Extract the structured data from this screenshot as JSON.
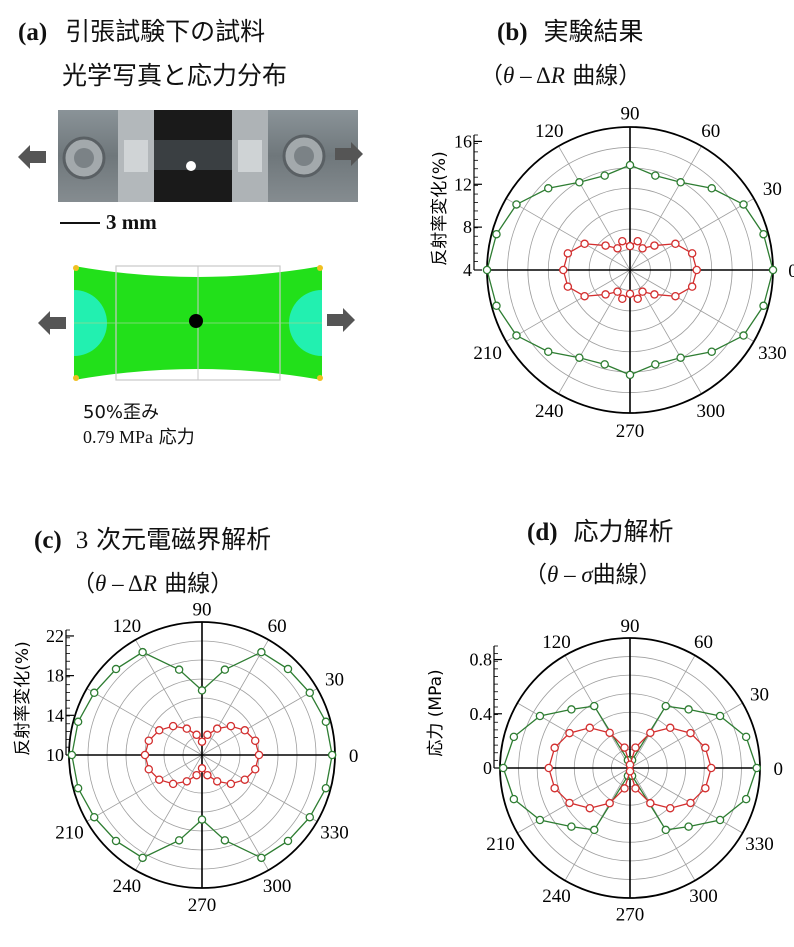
{
  "panel_a": {
    "label": "(a)",
    "title": "引張試験下の試料",
    "subtitle": "光学写真と応力分布",
    "scale_bar": "3 mm",
    "strain": "50%歪み",
    "stress_value": "0.79 MPa",
    "stress_word": "応力"
  },
  "panel_b": {
    "label": "(b)",
    "title": "実験結果",
    "subtitle_pre": "（",
    "subtitle_theta": "θ",
    "subtitle_mid": " – Δ",
    "subtitle_R": "R",
    "subtitle_post": " 曲線）"
  },
  "panel_c": {
    "label": "(c)",
    "title_num": "3",
    "title": " 次元電磁界解析",
    "subtitle_pre": "（",
    "subtitle_theta": "θ",
    "subtitle_mid": " – Δ",
    "subtitle_R": "R",
    "subtitle_post": " 曲線）"
  },
  "panel_d": {
    "label": "(d)",
    "title": "応力解析",
    "subtitle_pre": "（",
    "subtitle_theta": "θ",
    "subtitle_mid": " – ",
    "subtitle_sigma": "σ",
    "subtitle_post": "曲線）"
  },
  "colors": {
    "green": "#2e7d32",
    "red": "#d32f2f",
    "grid": "#9e9e9e",
    "fem_green": "#22e01a",
    "fem_cyan": "#22f0b0",
    "arrow": "#555555"
  },
  "chart_data": [
    {
      "id": "b",
      "type": "polar",
      "ylabel": "反射率変化(%)",
      "rlim": [
        4,
        16
      ],
      "r_ticks": [
        "4",
        "8",
        "12",
        "16"
      ],
      "angle_ticks": [
        "0",
        "30",
        "60",
        "90",
        "120",
        "210",
        "240",
        "270",
        "300",
        "330"
      ],
      "series": [
        {
          "angles": [
            0,
            15,
            30,
            45,
            60,
            75,
            90,
            105,
            120,
            135,
            150,
            165,
            180,
            195,
            210,
            225,
            240,
            255,
            270,
            285,
            300,
            315,
            330,
            345
          ],
          "values": [
            16,
            15.6,
            15,
            13.7,
            12.5,
            12.2,
            12.8,
            12.2,
            12.5,
            13.7,
            15,
            15.6,
            16,
            15.6,
            15,
            13.7,
            12.5,
            12.2,
            12.8,
            12.2,
            12.5,
            13.7,
            15,
            15.6
          ]
        },
        {
          "angles": [
            0,
            15,
            30,
            45,
            60,
            75,
            90,
            105,
            120,
            135,
            150,
            165,
            180,
            195,
            210,
            225,
            240,
            255,
            270,
            285,
            300,
            315,
            330,
            345
          ],
          "values": [
            9.6,
            9.4,
            8.4,
            6.9,
            6.1,
            6.5,
            6,
            6.5,
            6.1,
            6.9,
            8.4,
            9.4,
            9.6,
            9.4,
            8.4,
            6.9,
            6.1,
            6.5,
            6,
            6.5,
            6.1,
            6.9,
            8.4,
            9.4
          ]
        }
      ]
    },
    {
      "id": "c",
      "type": "polar",
      "ylabel": "反射率変化(%)",
      "rlim": [
        10,
        24
      ],
      "r_ticks": [
        "10",
        "14",
        "18",
        "22"
      ],
      "angle_ticks": [
        "0",
        "30",
        "60",
        "90",
        "120",
        "210",
        "240",
        "270",
        "300",
        "330"
      ],
      "series": [
        {
          "angles": [
            0,
            15,
            30,
            45,
            60,
            75,
            90,
            105,
            120,
            135,
            150,
            165,
            180,
            195,
            210,
            225,
            240,
            255,
            270,
            285,
            300,
            315,
            330,
            345
          ],
          "values": [
            23.7,
            23.5,
            23.1,
            22.8,
            22.5,
            19.3,
            16.8,
            19.3,
            22.5,
            22.8,
            23.1,
            23.5,
            23.7,
            23.5,
            23.1,
            22.8,
            22.5,
            19.3,
            16.8,
            19.3,
            22.5,
            22.8,
            23.1,
            23.5
          ]
        },
        {
          "angles": [
            0,
            15,
            30,
            45,
            60,
            75,
            90,
            105,
            120,
            135,
            150,
            165,
            180,
            195,
            210,
            225,
            240,
            255,
            270,
            285,
            300,
            315,
            330,
            345
          ],
          "values": [
            16,
            15.8,
            15.2,
            14.3,
            13.2,
            12.2,
            11.4,
            12.2,
            13.2,
            14.3,
            15.2,
            15.8,
            16,
            15.8,
            15.2,
            14.3,
            13.2,
            12.2,
            11.4,
            12.2,
            13.2,
            14.3,
            15.2,
            15.8
          ]
        }
      ]
    },
    {
      "id": "d",
      "type": "polar",
      "ylabel": "応力 (MPa)",
      "rlim": [
        0,
        0.8
      ],
      "r_ticks": [
        "0",
        "0.4",
        "0.8"
      ],
      "angle_ticks": [
        "0",
        "30",
        "60",
        "90",
        "120",
        "210",
        "240",
        "270",
        "300",
        "330"
      ],
      "series": [
        {
          "angles": [
            0,
            15,
            30,
            45,
            60,
            75,
            90,
            105,
            120,
            135,
            150,
            165,
            180,
            195,
            210,
            225,
            240,
            255,
            270,
            285,
            300,
            315,
            330,
            345
          ],
          "values": [
            0.78,
            0.74,
            0.64,
            0.51,
            0.44,
            0.05,
            0.02,
            0.05,
            0.44,
            0.51,
            0.64,
            0.74,
            0.78,
            0.74,
            0.64,
            0.51,
            0.44,
            0.05,
            0.02,
            0.05,
            0.44,
            0.51,
            0.64,
            0.74
          ]
        },
        {
          "angles": [
            0,
            15,
            30,
            45,
            60,
            75,
            90,
            105,
            120,
            135,
            150,
            165,
            180,
            195,
            210,
            225,
            240,
            255,
            270,
            285,
            300,
            315,
            330,
            345
          ],
          "values": [
            0.5,
            0.48,
            0.43,
            0.35,
            0.25,
            0.13,
            0.02,
            0.13,
            0.25,
            0.35,
            0.43,
            0.48,
            0.5,
            0.48,
            0.43,
            0.35,
            0.25,
            0.13,
            0.02,
            0.13,
            0.25,
            0.35,
            0.43,
            0.48
          ]
        }
      ]
    }
  ]
}
